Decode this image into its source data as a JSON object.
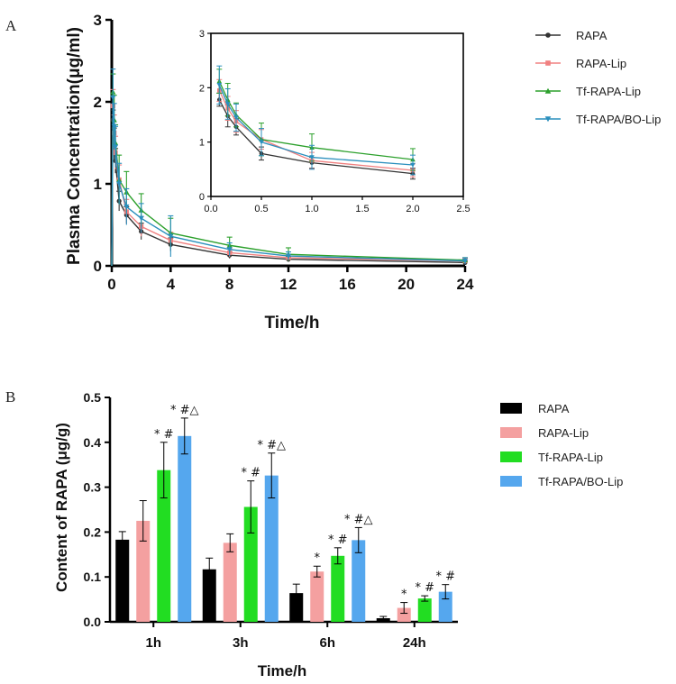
{
  "chart_data": [
    {
      "panel_label": "A",
      "type": "line",
      "title": "",
      "xlabel": "Time/h",
      "ylabel": "Plasma Concentration(μg/ml)",
      "xlim": [
        0,
        24
      ],
      "ylim": [
        0,
        3
      ],
      "xticks": [
        "0",
        "4",
        "8",
        "12",
        "16",
        "20",
        "24"
      ],
      "yticks": [
        "0",
        "1",
        "2",
        "3"
      ],
      "legend_position": "right",
      "series": [
        {
          "name": "RAPA",
          "color": "#333333",
          "marker": "circle",
          "x": [
            0.083,
            0.167,
            0.25,
            0.5,
            1,
            2,
            4,
            8,
            12,
            24
          ],
          "y": [
            1.78,
            1.48,
            1.28,
            0.79,
            0.62,
            0.42,
            0.26,
            0.13,
            0.08,
            0.04
          ],
          "err": [
            0.12,
            0.2,
            0.15,
            0.12,
            0.1,
            0.1,
            0.08,
            0.04,
            0.03,
            0.02
          ]
        },
        {
          "name": "RAPA-Lip",
          "color": "#f08080",
          "marker": "square",
          "x": [
            0.083,
            0.167,
            0.25,
            0.5,
            1,
            2,
            4,
            8,
            12,
            24
          ],
          "y": [
            1.95,
            1.62,
            1.38,
            1.05,
            0.66,
            0.48,
            0.31,
            0.16,
            0.1,
            0.06
          ],
          "err": [
            0.2,
            0.22,
            0.2,
            0.18,
            0.15,
            0.12,
            0.1,
            0.05,
            0.04,
            0.03
          ]
        },
        {
          "name": "Tf-RAPA-Lip",
          "color": "#2ca02c",
          "marker": "triangle-up",
          "x": [
            0.083,
            0.167,
            0.25,
            0.5,
            1,
            2,
            4,
            8,
            12,
            24
          ],
          "y": [
            2.12,
            1.78,
            1.5,
            1.05,
            0.9,
            0.68,
            0.4,
            0.25,
            0.14,
            0.07
          ],
          "err": [
            0.22,
            0.3,
            0.22,
            0.3,
            0.25,
            0.2,
            0.18,
            0.1,
            0.08,
            0.03
          ]
        },
        {
          "name": "Tf-RAPA/BO-Lip",
          "color": "#2a8fbd",
          "marker": "triangle-down",
          "x": [
            0.083,
            0.167,
            0.25,
            0.5,
            1,
            2,
            4,
            8,
            12,
            24
          ],
          "y": [
            2.05,
            1.7,
            1.45,
            1.0,
            0.72,
            0.58,
            0.36,
            0.2,
            0.12,
            0.06
          ],
          "err": [
            0.35,
            0.28,
            0.25,
            0.25,
            0.22,
            0.18,
            0.25,
            0.08,
            0.05,
            0.04
          ]
        }
      ],
      "inset": {
        "xlim": [
          0,
          2.5
        ],
        "ylim": [
          0,
          3
        ],
        "xticks": [
          "0.0",
          "0.5",
          "1.0",
          "1.5",
          "2.0",
          "2.5"
        ],
        "yticks": [
          "0",
          "1",
          "2",
          "3"
        ],
        "x_max_shown": 2
      }
    },
    {
      "panel_label": "B",
      "type": "bar",
      "title": "",
      "xlabel": "Time/h",
      "ylabel": "Content of RAPA (μg/g)",
      "categories": [
        "1h",
        "3h",
        "6h",
        "24h"
      ],
      "ylim": [
        0,
        0.5
      ],
      "yticks": [
        "0.0",
        "0.1",
        "0.2",
        "0.3",
        "0.4",
        "0.5"
      ],
      "legend_position": "right",
      "series": [
        {
          "name": "RAPA",
          "color": "#000000",
          "values": [
            0.183,
            0.117,
            0.064,
            0.008
          ],
          "err": [
            0.018,
            0.025,
            0.02,
            0.004
          ],
          "annotations": [
            "",
            "",
            "",
            ""
          ]
        },
        {
          "name": "RAPA-Lip",
          "color": "#f4a0a0",
          "values": [
            0.225,
            0.176,
            0.112,
            0.031
          ],
          "err": [
            0.045,
            0.02,
            0.012,
            0.012
          ],
          "annotations": [
            "",
            "",
            "*",
            "*"
          ]
        },
        {
          "name": "Tf-RAPA-Lip",
          "color": "#22dd22",
          "values": [
            0.338,
            0.256,
            0.147,
            0.052
          ],
          "err": [
            0.062,
            0.058,
            0.018,
            0.006
          ],
          "annotations": [
            "* #",
            "* #",
            "* #",
            "* #"
          ]
        },
        {
          "name": "Tf-RAPA/BO-Lip",
          "color": "#55a7ee",
          "values": [
            0.414,
            0.326,
            0.182,
            0.067
          ],
          "err": [
            0.04,
            0.05,
            0.028,
            0.016
          ],
          "annotations": [
            "* #△",
            "* #△",
            "* #△",
            "* #"
          ]
        }
      ]
    }
  ]
}
